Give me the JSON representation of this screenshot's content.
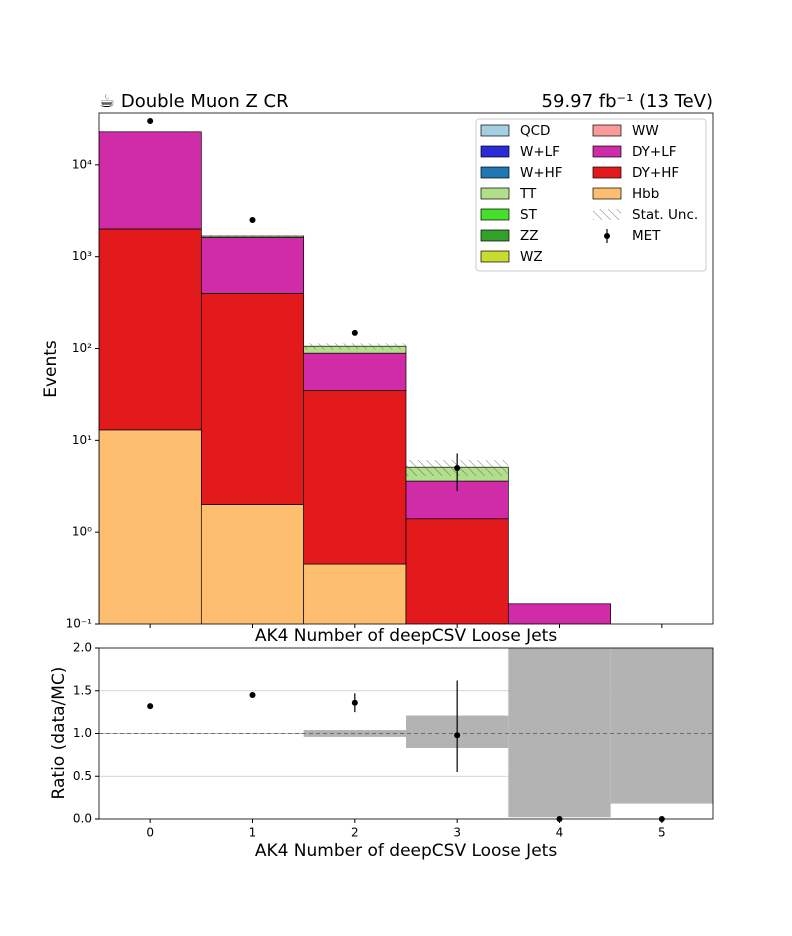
{
  "chart_data": {
    "type": "stacked_histogram",
    "title": "☕ Double Muon Z CR",
    "subtitle": "59.97 fb⁻¹ (13 TeV)",
    "x_label": "AK4 Number of deepCSV Loose Jets",
    "y_label": "Events",
    "log_y": true,
    "legend": "upper right",
    "bins": [
      -0.5,
      0.5,
      1.5,
      2.5,
      3.5,
      4.5,
      5.5
    ],
    "xlim": [
      -0.5,
      5.5
    ],
    "xticks": [
      0,
      1,
      2,
      3,
      4,
      5
    ],
    "ylim": [
      0.1,
      36700
    ],
    "yticks": [
      {
        "value": 0.1,
        "label": "10⁻¹"
      },
      {
        "value": 1,
        "label": "10⁰"
      },
      {
        "value": 10,
        "label": "10¹"
      },
      {
        "value": 100,
        "label": "10²"
      },
      {
        "value": 1000,
        "label": "10³"
      },
      {
        "value": 10000,
        "label": "10⁴"
      }
    ],
    "series": [
      {
        "name": "Hbb",
        "color": "#fdbf6f",
        "values": [
          13,
          2,
          0.45,
          0,
          0,
          0
        ]
      },
      {
        "name": "DY+HF",
        "color": "#e31a1c",
        "values": [
          1990,
          396,
          34.5,
          1.4,
          0,
          0
        ]
      },
      {
        "name": "DY+LF",
        "color": "#d02ca8",
        "values": [
          20900,
          1220,
          54,
          2.2,
          0.166,
          0
        ]
      },
      {
        "name": "WW",
        "color": "#fb9a99",
        "values": [
          0,
          0,
          0,
          0,
          0,
          0
        ]
      },
      {
        "name": "WZ",
        "color": "#c8dc30",
        "values": [
          0,
          0,
          0,
          0,
          0,
          0
        ]
      },
      {
        "name": "ZZ",
        "color": "#33a02c",
        "values": [
          0,
          0,
          0,
          0,
          0,
          0
        ]
      },
      {
        "name": "ST",
        "color": "#44e02a",
        "values": [
          0,
          0,
          0,
          0,
          0,
          0
        ]
      },
      {
        "name": "TT",
        "color": "#b2df8a",
        "values": [
          0,
          60,
          17,
          1.5,
          0,
          0
        ]
      },
      {
        "name": "W+HF",
        "color": "#1f78b4",
        "values": [
          0,
          0,
          0,
          0,
          0,
          0
        ]
      },
      {
        "name": "W+LF",
        "color": "#2a2ad9",
        "values": [
          0,
          0,
          0,
          0,
          0,
          0
        ]
      },
      {
        "name": "QCD",
        "color": "#a6cee3",
        "values": [
          0,
          0,
          0,
          0,
          0,
          0
        ]
      }
    ],
    "stat_unc": {
      "name": "Stat. Unc.",
      "values": [
        150,
        40,
        8,
        1,
        0,
        0
      ]
    },
    "data": {
      "name": "MET",
      "color": "#000000",
      "values": [
        30000,
        2510,
        148,
        5,
        0,
        0
      ],
      "errors": [
        0,
        0,
        0,
        2.2,
        0,
        0
      ]
    },
    "ratio": {
      "y_label": "Ratio (data/MC)",
      "x_label": "AK4 Number of deepCSV Loose Jets",
      "ylim": [
        0,
        2
      ],
      "yticks": [
        {
          "value": 0,
          "label": "0.0"
        },
        {
          "value": 0.5,
          "label": "0.5"
        },
        {
          "value": 1,
          "label": "1.0"
        },
        {
          "value": 1.5,
          "label": "1.5"
        },
        {
          "value": 2,
          "label": "2.0"
        }
      ],
      "values": [
        1.32,
        1.45,
        1.36,
        0.98,
        0,
        0
      ],
      "err_low": [
        0,
        0,
        0.11,
        0.43,
        0,
        0
      ],
      "err_high": [
        0,
        0,
        0.11,
        0.64,
        0,
        0
      ],
      "band_low": [
        0.995,
        0.995,
        0.96,
        0.83,
        0.02,
        0.18
      ],
      "band_high": [
        1.005,
        1.005,
        1.04,
        1.21,
        2,
        2
      ],
      "band_color": "#b3b3b3"
    }
  }
}
